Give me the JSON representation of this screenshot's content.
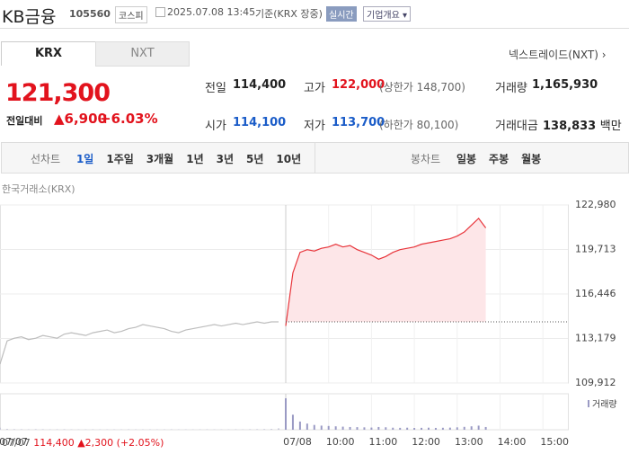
{
  "header": {
    "name": "KB금융",
    "code": "105560",
    "market": "코스피",
    "datetime": "2025.07.08 13:45",
    "basis": "기준(KRX 장중)",
    "realtime": "실시간",
    "company": "기업개요"
  },
  "tabs": [
    "KRX",
    "NXT"
  ],
  "nxt_link": "넥스트레이드(NXT)",
  "price": {
    "current": "121,300",
    "change_label": "전일대비",
    "change": "6,900",
    "rate": "+6.03%"
  },
  "stats": [
    {
      "label": "전일",
      "value": "114,400"
    },
    {
      "label": "고가",
      "value": "122,000",
      "sub_label": "상한가",
      "sub_value": "148,700"
    },
    {
      "label": "거래량",
      "value": "1,165,930"
    },
    {
      "label": "시가",
      "value": "114,100"
    },
    {
      "label": "저가",
      "value": "113,700",
      "sub_label": "하한가",
      "sub_value": "80,100"
    },
    {
      "label": "거래대금",
      "value": "138,833",
      "unit": "백만"
    }
  ],
  "periods": {
    "line_label": "선차트",
    "line": [
      "1일",
      "1주일",
      "3개월",
      "1년",
      "3년",
      "5년",
      "10년"
    ],
    "candle_label": "봉차트",
    "candle": [
      "일봉",
      "주봉",
      "월봉"
    ]
  },
  "footer": {
    "date": "07/07",
    "close": "114,400",
    "change": "2,300",
    "rate": "(+2.05%)"
  },
  "chart_data": {
    "type": "line",
    "source": "한국거래소(KRX)",
    "categories": [
      "07/07",
      null,
      null,
      null,
      null,
      null,
      null,
      null,
      null,
      null,
      null,
      null,
      null,
      null,
      null,
      null,
      null,
      null,
      null,
      null,
      null,
      null,
      null,
      null,
      null,
      null,
      null,
      null,
      null,
      null,
      null,
      null,
      null,
      null,
      null,
      null,
      null,
      null,
      null,
      null,
      "07/08",
      null,
      null,
      null,
      null,
      null,
      "10:00",
      null,
      null,
      null,
      null,
      null,
      "11:00",
      null,
      null,
      null,
      null,
      null,
      "12:00",
      null,
      null,
      null,
      null,
      null,
      "13:00",
      null,
      null,
      null,
      null,
      null,
      "14:00",
      null,
      null,
      null,
      null,
      null,
      "15:00",
      null,
      null,
      null
    ],
    "series": [
      {
        "color": "#bdbdbd",
        "values": [
          111300,
          113000,
          113200,
          113300,
          113100,
          113200,
          113400,
          113300,
          113200,
          113500,
          113600,
          113500,
          113400,
          113600,
          113700,
          113800,
          113600,
          113700,
          113900,
          114000,
          114200,
          114100,
          114000,
          113900,
          113700,
          113600,
          113800,
          113900,
          114000,
          114100,
          114200,
          114100,
          114200,
          114300,
          114200,
          114300,
          114400,
          114300,
          114400,
          114400,
          null,
          null,
          null,
          null,
          null,
          null,
          null,
          null,
          null,
          null,
          null,
          null,
          null,
          null,
          null,
          null,
          null,
          null,
          null,
          null,
          null,
          null,
          null,
          null,
          null,
          null,
          null,
          null,
          null,
          null,
          null,
          null,
          null,
          null,
          null,
          null,
          null,
          null,
          null,
          null
        ]
      },
      {
        "color": "#e8353b",
        "fill": "#fde6e8",
        "values": [
          null,
          null,
          null,
          null,
          null,
          null,
          null,
          null,
          null,
          null,
          null,
          null,
          null,
          null,
          null,
          null,
          null,
          null,
          null,
          null,
          null,
          null,
          null,
          null,
          null,
          null,
          null,
          null,
          null,
          null,
          null,
          null,
          null,
          null,
          null,
          null,
          null,
          null,
          null,
          null,
          114100,
          118000,
          119500,
          119700,
          119600,
          119800,
          119900,
          120100,
          119900,
          120000,
          119700,
          119500,
          119300,
          119000,
          119200,
          119500,
          119700,
          119800,
          119900,
          120100,
          120200,
          120300,
          120400,
          120500,
          120700,
          121000,
          121500,
          122000,
          121300,
          null,
          null,
          null,
          null,
          null,
          null,
          null,
          null,
          null,
          null,
          null
        ]
      }
    ],
    "reference": 114400,
    "ylim": [
      109912,
      122980
    ],
    "yticks": [
      {
        "value": 109912,
        "label": "109,912"
      },
      {
        "value": 113179,
        "label": "113,179"
      },
      {
        "value": 116446,
        "label": "116,446"
      },
      {
        "value": 119713,
        "label": "119,713"
      },
      {
        "value": 122980,
        "label": "122,980"
      }
    ],
    "grid": true,
    "volume": {
      "name": "거래량",
      "color": "#9a9ac4",
      "vlim": [
        0,
        500000
      ],
      "values": [
        30000,
        12000,
        9000,
        8000,
        7000,
        9000,
        8000,
        6000,
        7000,
        8000,
        6000,
        5000,
        6000,
        7000,
        6000,
        5000,
        6000,
        5000,
        7000,
        6000,
        5000,
        6000,
        5000,
        6000,
        7000,
        5000,
        6000,
        5000,
        6000,
        7000,
        6000,
        5000,
        6000,
        7000,
        6000,
        8000,
        9000,
        10000,
        12000,
        20000,
        460000,
        220000,
        120000,
        90000,
        70000,
        60000,
        55000,
        50000,
        45000,
        40000,
        38000,
        35000,
        32000,
        40000,
        36000,
        30000,
        28000,
        30000,
        26000,
        28000,
        30000,
        27000,
        29000,
        31000,
        35000,
        42000,
        50000,
        60000,
        40000,
        null,
        null,
        null,
        null,
        null,
        null,
        null,
        null,
        null,
        null,
        null
      ]
    }
  }
}
